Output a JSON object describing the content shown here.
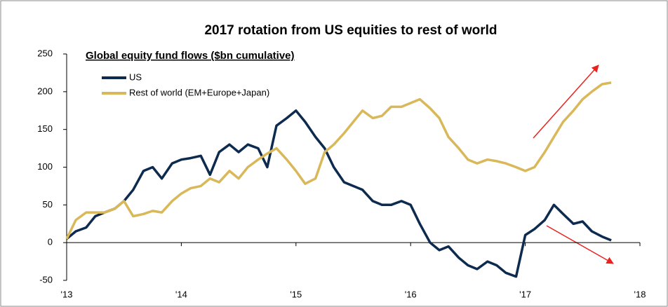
{
  "chart_data": {
    "type": "line",
    "title": "2017 rotation from US equities to rest of world",
    "subtitle": "Global equity fund flows ($bn cumulative)",
    "x": [
      2013.0,
      2013.08,
      2013.17,
      2013.25,
      2013.33,
      2013.42,
      2013.5,
      2013.58,
      2013.67,
      2013.75,
      2013.83,
      2013.92,
      2014.0,
      2014.08,
      2014.17,
      2014.25,
      2014.33,
      2014.42,
      2014.5,
      2014.58,
      2014.67,
      2014.75,
      2014.83,
      2014.92,
      2015.0,
      2015.08,
      2015.17,
      2015.25,
      2015.33,
      2015.42,
      2015.5,
      2015.58,
      2015.67,
      2015.75,
      2015.83,
      2015.92,
      2016.0,
      2016.08,
      2016.17,
      2016.25,
      2016.33,
      2016.42,
      2016.5,
      2016.58,
      2016.67,
      2016.75,
      2016.83,
      2016.92,
      2017.0,
      2017.08,
      2017.17,
      2017.25,
      2017.33,
      2017.42,
      2017.5,
      2017.58,
      2017.67,
      2017.75
    ],
    "series": [
      {
        "name": "US",
        "color": "#0d2a4f",
        "values": [
          5,
          15,
          20,
          35,
          40,
          45,
          55,
          70,
          95,
          100,
          85,
          105,
          110,
          112,
          115,
          90,
          120,
          130,
          120,
          130,
          125,
          100,
          155,
          165,
          175,
          160,
          140,
          125,
          100,
          80,
          75,
          70,
          55,
          50,
          50,
          55,
          50,
          25,
          0,
          -10,
          -5,
          -20,
          -30,
          -35,
          -25,
          -30,
          -40,
          -45,
          10,
          18,
          30,
          50,
          38,
          25,
          28,
          15,
          8,
          3
        ]
      },
      {
        "name": "Rest of world (EM+Europe+Japan)",
        "color": "#d9b85a",
        "values": [
          5,
          30,
          40,
          40,
          40,
          45,
          55,
          35,
          38,
          42,
          40,
          55,
          65,
          72,
          75,
          85,
          80,
          95,
          85,
          100,
          110,
          118,
          125,
          110,
          95,
          78,
          85,
          120,
          130,
          145,
          160,
          175,
          165,
          168,
          180,
          180,
          185,
          190,
          178,
          165,
          140,
          125,
          110,
          105,
          110,
          108,
          105,
          100,
          95,
          100,
          120,
          140,
          160,
          175,
          190,
          200,
          210,
          212
        ]
      }
    ],
    "xlim": [
      2013,
      2018
    ],
    "xticks": [
      {
        "value": 2013,
        "label": "'13"
      },
      {
        "value": 2014,
        "label": "'14"
      },
      {
        "value": 2015,
        "label": "'15"
      },
      {
        "value": 2016,
        "label": "'16"
      },
      {
        "value": 2017,
        "label": "'17"
      },
      {
        "value": 2018,
        "label": "'18"
      }
    ],
    "ylim": [
      -50,
      250
    ],
    "yticks": [
      -50,
      0,
      50,
      100,
      150,
      200,
      250
    ]
  }
}
